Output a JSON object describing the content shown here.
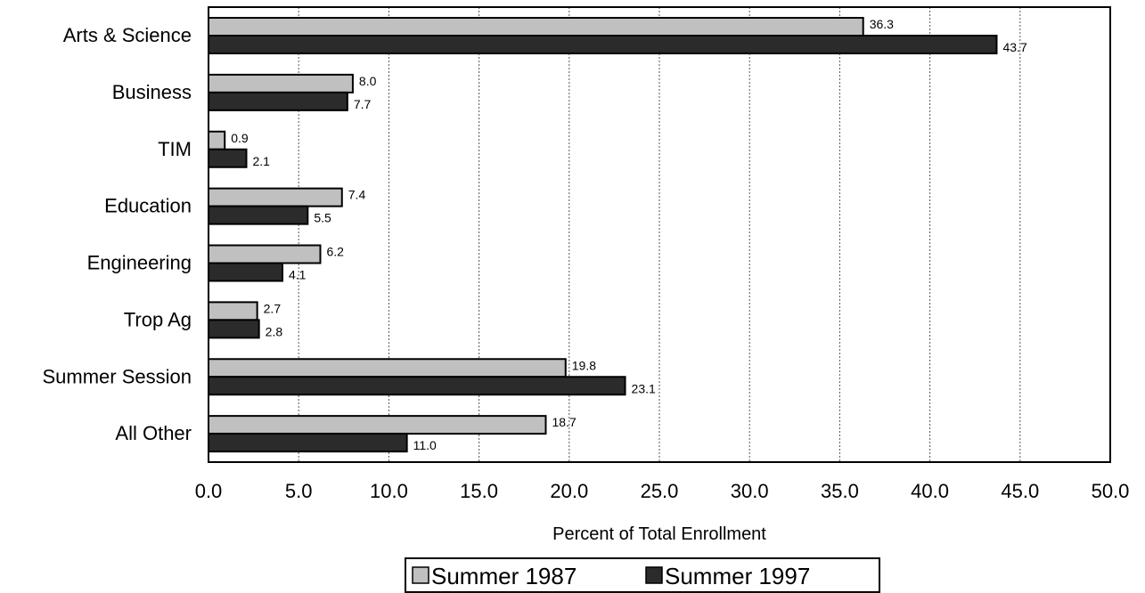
{
  "chart_data": {
    "type": "bar",
    "orientation": "horizontal",
    "categories": [
      "Arts & Science",
      "Business",
      "TIM",
      "Education",
      "Engineering",
      "Trop Ag",
      "Summer Session",
      "All Other"
    ],
    "series": [
      {
        "name": "Summer 1987",
        "color": "#c0c0c0",
        "values": [
          36.3,
          8.0,
          0.9,
          7.4,
          6.2,
          2.7,
          19.8,
          18.7
        ],
        "labels": [
          "36.3",
          "8.0",
          "0.9",
          "7.4",
          "6.2",
          "2.7",
          "19.8",
          "18.7"
        ]
      },
      {
        "name": "Summer 1997",
        "color": "#2b2b2b",
        "values": [
          43.7,
          7.7,
          2.1,
          5.5,
          4.1,
          2.8,
          23.1,
          11.0
        ],
        "labels": [
          "43.7",
          "7.7",
          "2.1",
          "5.5",
          "4.1",
          "2.8",
          "23.1",
          "11.0"
        ]
      }
    ],
    "xlabel": "Percent of Total Enrollment",
    "xlim": [
      0,
      50
    ],
    "xticks": [
      "0.0",
      "5.0",
      "10.0",
      "15.0",
      "20.0",
      "25.0",
      "30.0",
      "35.0",
      "40.0",
      "45.0",
      "50.0"
    ],
    "grid": "vertical dashed",
    "legend_position": "bottom-center"
  }
}
